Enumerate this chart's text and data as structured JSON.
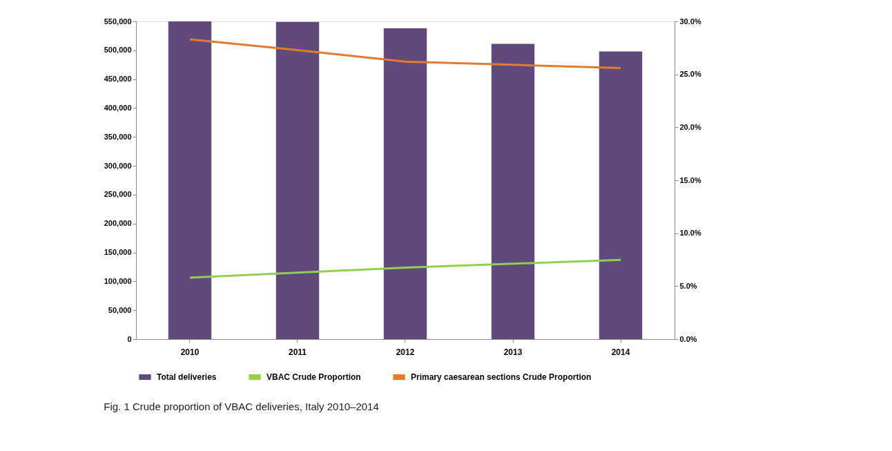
{
  "chart_data": {
    "type": "bar",
    "categories": [
      "2010",
      "2011",
      "2012",
      "2013",
      "2014"
    ],
    "series": [
      {
        "name": "Total deliveries",
        "color": "#604a7b",
        "values": [
          550000,
          549000,
          538000,
          511000,
          498000
        ]
      },
      {
        "name": "VBAC Crude Proportion",
        "type": "line",
        "axis": "y2",
        "color": "#92d050",
        "values": [
          5.81,
          6.28,
          6.75,
          7.12,
          7.49
        ]
      },
      {
        "name": "Primary caesarean sections Crude Proportion",
        "type": "line",
        "axis": "y2",
        "color": "#e07b30",
        "values": [
          28.3,
          27.3,
          26.2,
          25.9,
          25.6
        ]
      }
    ],
    "ylim": [
      0,
      550000
    ],
    "yticks": [
      0,
      {
        "value": 50000,
        "label": "50,000"
      },
      {
        "value": 100000,
        "label": "100,000"
      },
      {
        "value": 150000,
        "label": "150,000"
      },
      {
        "value": 200000,
        "label": "200,000"
      },
      {
        "value": 250000,
        "label": "250,000"
      },
      {
        "value": 300000,
        "label": "300,000"
      },
      {
        "value": 350000,
        "label": "350,000"
      },
      {
        "value": 400000,
        "label": "400,000"
      },
      {
        "value": 450000,
        "label": "450,000"
      },
      {
        "value": 500000,
        "label": "500,000"
      },
      {
        "value": 550000,
        "label": "550,000"
      }
    ],
    "y2lim": [
      0,
      30
    ],
    "y2ticks": [
      {
        "value": 0,
        "label": "0.0%"
      },
      {
        "value": 5,
        "label": "5.0%"
      },
      {
        "value": 10,
        "label": "10.0%"
      },
      {
        "value": 15,
        "label": "15.0%"
      },
      {
        "value": 20,
        "label": "20.0%"
      },
      {
        "value": 25,
        "label": "25.0%"
      },
      {
        "value": 30,
        "label": "30.0%"
      }
    ],
    "grid": false,
    "legend": "bottom",
    "annotations": [
      "Fig. 1 Crude proportion of VBAC deliveries, Italy 2010–2014"
    ]
  }
}
